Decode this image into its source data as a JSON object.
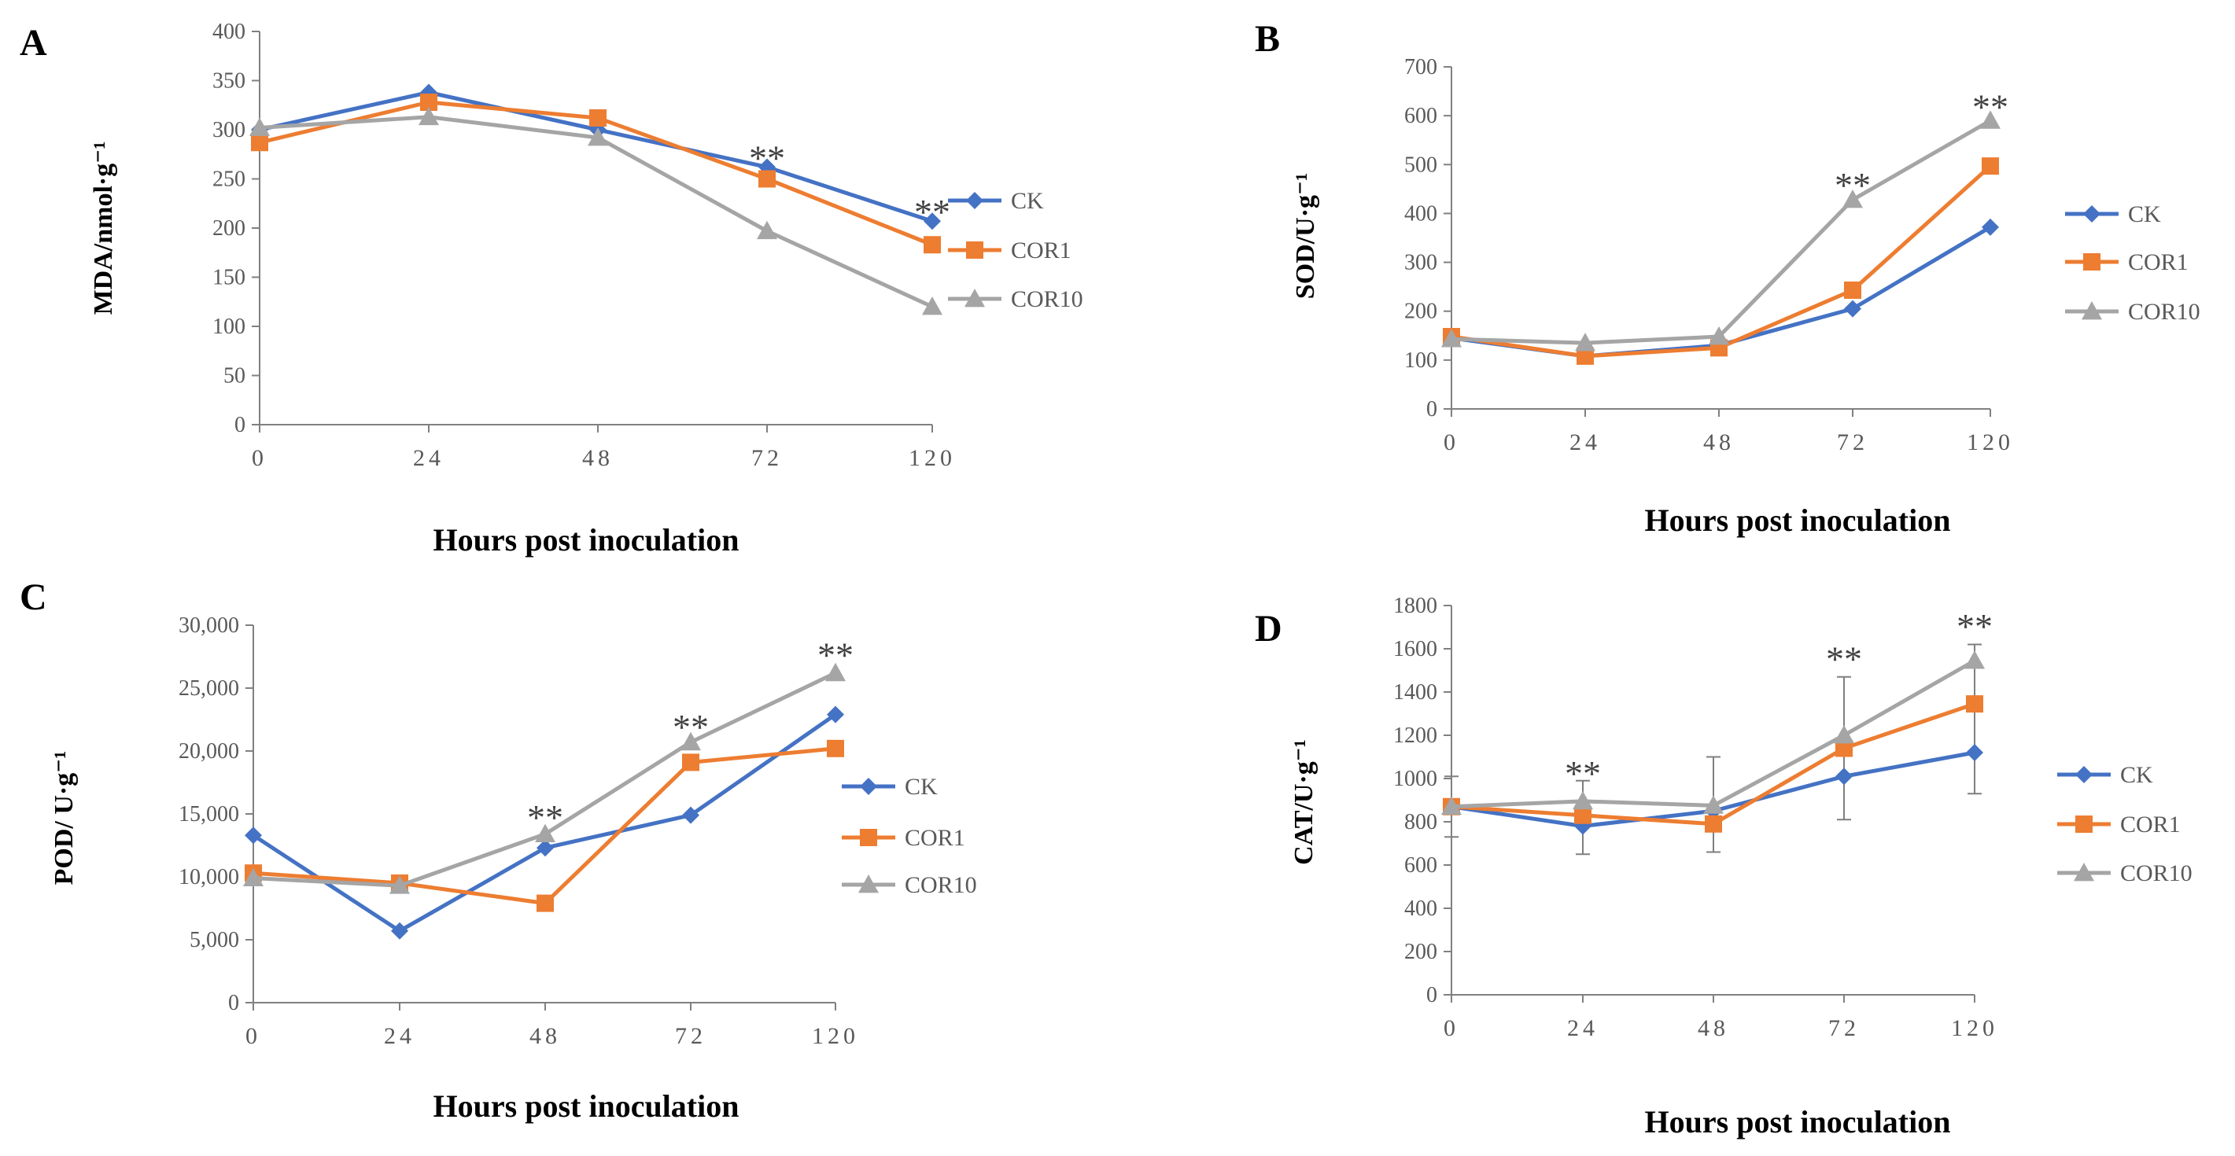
{
  "legend_colors": {
    "CK": "#4472C4",
    "COR1": "#ED7D31",
    "COR10": "#A5A5A5"
  },
  "chart_data": [
    {
      "type": "line",
      "panel_label": "A",
      "title": "",
      "xlabel": "Hours post inoculation",
      "ylabel": "MDA/nmol·g⁻¹",
      "categories": [
        "0",
        "24",
        "48",
        "72",
        "120"
      ],
      "ylim": [
        0,
        400
      ],
      "yticks": [
        0,
        50,
        100,
        150,
        200,
        250,
        300,
        350,
        400
      ],
      "ytick_labels": [
        "0",
        "50",
        "100",
        "150",
        "200",
        "250",
        "300",
        "350",
        "400"
      ],
      "grid": false,
      "legend": "right",
      "series": [
        {
          "name": "CK",
          "marker": "diamond",
          "values": [
            300,
            338,
            300,
            262,
            207
          ]
        },
        {
          "name": "COR1",
          "marker": "square",
          "values": [
            287,
            328,
            312,
            250,
            183
          ]
        },
        {
          "name": "COR10",
          "marker": "triangle",
          "values": [
            302,
            313,
            292,
            197,
            120
          ]
        }
      ],
      "annotations": [
        {
          "text": "**",
          "category": "72",
          "y": 275
        },
        {
          "text": "**",
          "category": "120",
          "y": 220
        }
      ]
    },
    {
      "type": "line",
      "panel_label": "B",
      "title": "",
      "xlabel": "Hours post inoculation",
      "ylabel": "SOD/U·g⁻¹",
      "categories": [
        "0",
        "24",
        "48",
        "72",
        "120"
      ],
      "ylim": [
        0,
        700
      ],
      "yticks": [
        0,
        100,
        200,
        300,
        400,
        500,
        600,
        700
      ],
      "ytick_labels": [
        "0",
        "100",
        "200",
        "300",
        "400",
        "500",
        "600",
        "700"
      ],
      "grid": false,
      "legend": "right",
      "series": [
        {
          "name": "CK",
          "marker": "diamond",
          "values": [
            145,
            108,
            130,
            205,
            372
          ]
        },
        {
          "name": "COR1",
          "marker": "square",
          "values": [
            148,
            108,
            125,
            243,
            497
          ]
        },
        {
          "name": "COR10",
          "marker": "triangle",
          "values": [
            143,
            135,
            148,
            428,
            590
          ]
        }
      ],
      "annotations": [
        {
          "text": "**",
          "category": "72",
          "y": 465
        },
        {
          "text": "**",
          "category": "120",
          "y": 625
        }
      ]
    },
    {
      "type": "line",
      "panel_label": "C",
      "title": "",
      "xlabel": "Hours post inoculation",
      "ylabel": "POD/ U·g⁻¹",
      "categories": [
        "0",
        "24",
        "48",
        "72",
        "120"
      ],
      "ylim": [
        0,
        30000
      ],
      "yticks": [
        0,
        5000,
        10000,
        15000,
        20000,
        25000,
        30000
      ],
      "ytick_labels": [
        "0",
        "5,000",
        "10,000",
        "15,000",
        "20,000",
        "25,000",
        "30,000"
      ],
      "grid": false,
      "legend": "right",
      "series": [
        {
          "name": "CK",
          "marker": "diamond",
          "values": [
            13300,
            5700,
            12300,
            14900,
            22900
          ]
        },
        {
          "name": "COR1",
          "marker": "square",
          "values": [
            10300,
            9500,
            7900,
            19100,
            20200
          ]
        },
        {
          "name": "COR10",
          "marker": "triangle",
          "values": [
            9900,
            9300,
            13400,
            20700,
            26200
          ]
        }
      ],
      "annotations": [
        {
          "text": "**",
          "category": "48",
          "y": 15000
        },
        {
          "text": "**",
          "category": "72",
          "y": 22200
        },
        {
          "text": "**",
          "category": "120",
          "y": 27900
        }
      ]
    },
    {
      "type": "line",
      "panel_label": "D",
      "title": "",
      "xlabel": "Hours post inoculation",
      "ylabel": "CAT/U·g⁻¹",
      "categories": [
        "0",
        "24",
        "48",
        "72",
        "120"
      ],
      "ylim": [
        0,
        1800
      ],
      "yticks": [
        0,
        200,
        400,
        600,
        800,
        1000,
        1200,
        1400,
        1600,
        1800
      ],
      "ytick_labels": [
        "0",
        "200",
        "400",
        "600",
        "800",
        "1000",
        "1200",
        "1400",
        "1600",
        "1800"
      ],
      "grid": false,
      "legend": "right",
      "error_bars": [
        {
          "low": 730,
          "high": 1010
        },
        {
          "low": 650,
          "high": 990
        },
        {
          "low": 660,
          "high": 1100
        },
        {
          "low": 810,
          "high": 1470
        },
        {
          "low": 930,
          "high": 1620
        }
      ],
      "series": [
        {
          "name": "CK",
          "marker": "diamond",
          "values": [
            870,
            780,
            850,
            1010,
            1120
          ]
        },
        {
          "name": "COR1",
          "marker": "square",
          "values": [
            870,
            830,
            790,
            1140,
            1345
          ]
        },
        {
          "name": "COR10",
          "marker": "triangle",
          "values": [
            870,
            895,
            875,
            1200,
            1545
          ]
        }
      ],
      "annotations": [
        {
          "text": "**",
          "category": "24",
          "y": 1040
        },
        {
          "text": "**",
          "category": "72",
          "y": 1570
        },
        {
          "text": "**",
          "category": "120",
          "y": 1720
        }
      ]
    }
  ]
}
